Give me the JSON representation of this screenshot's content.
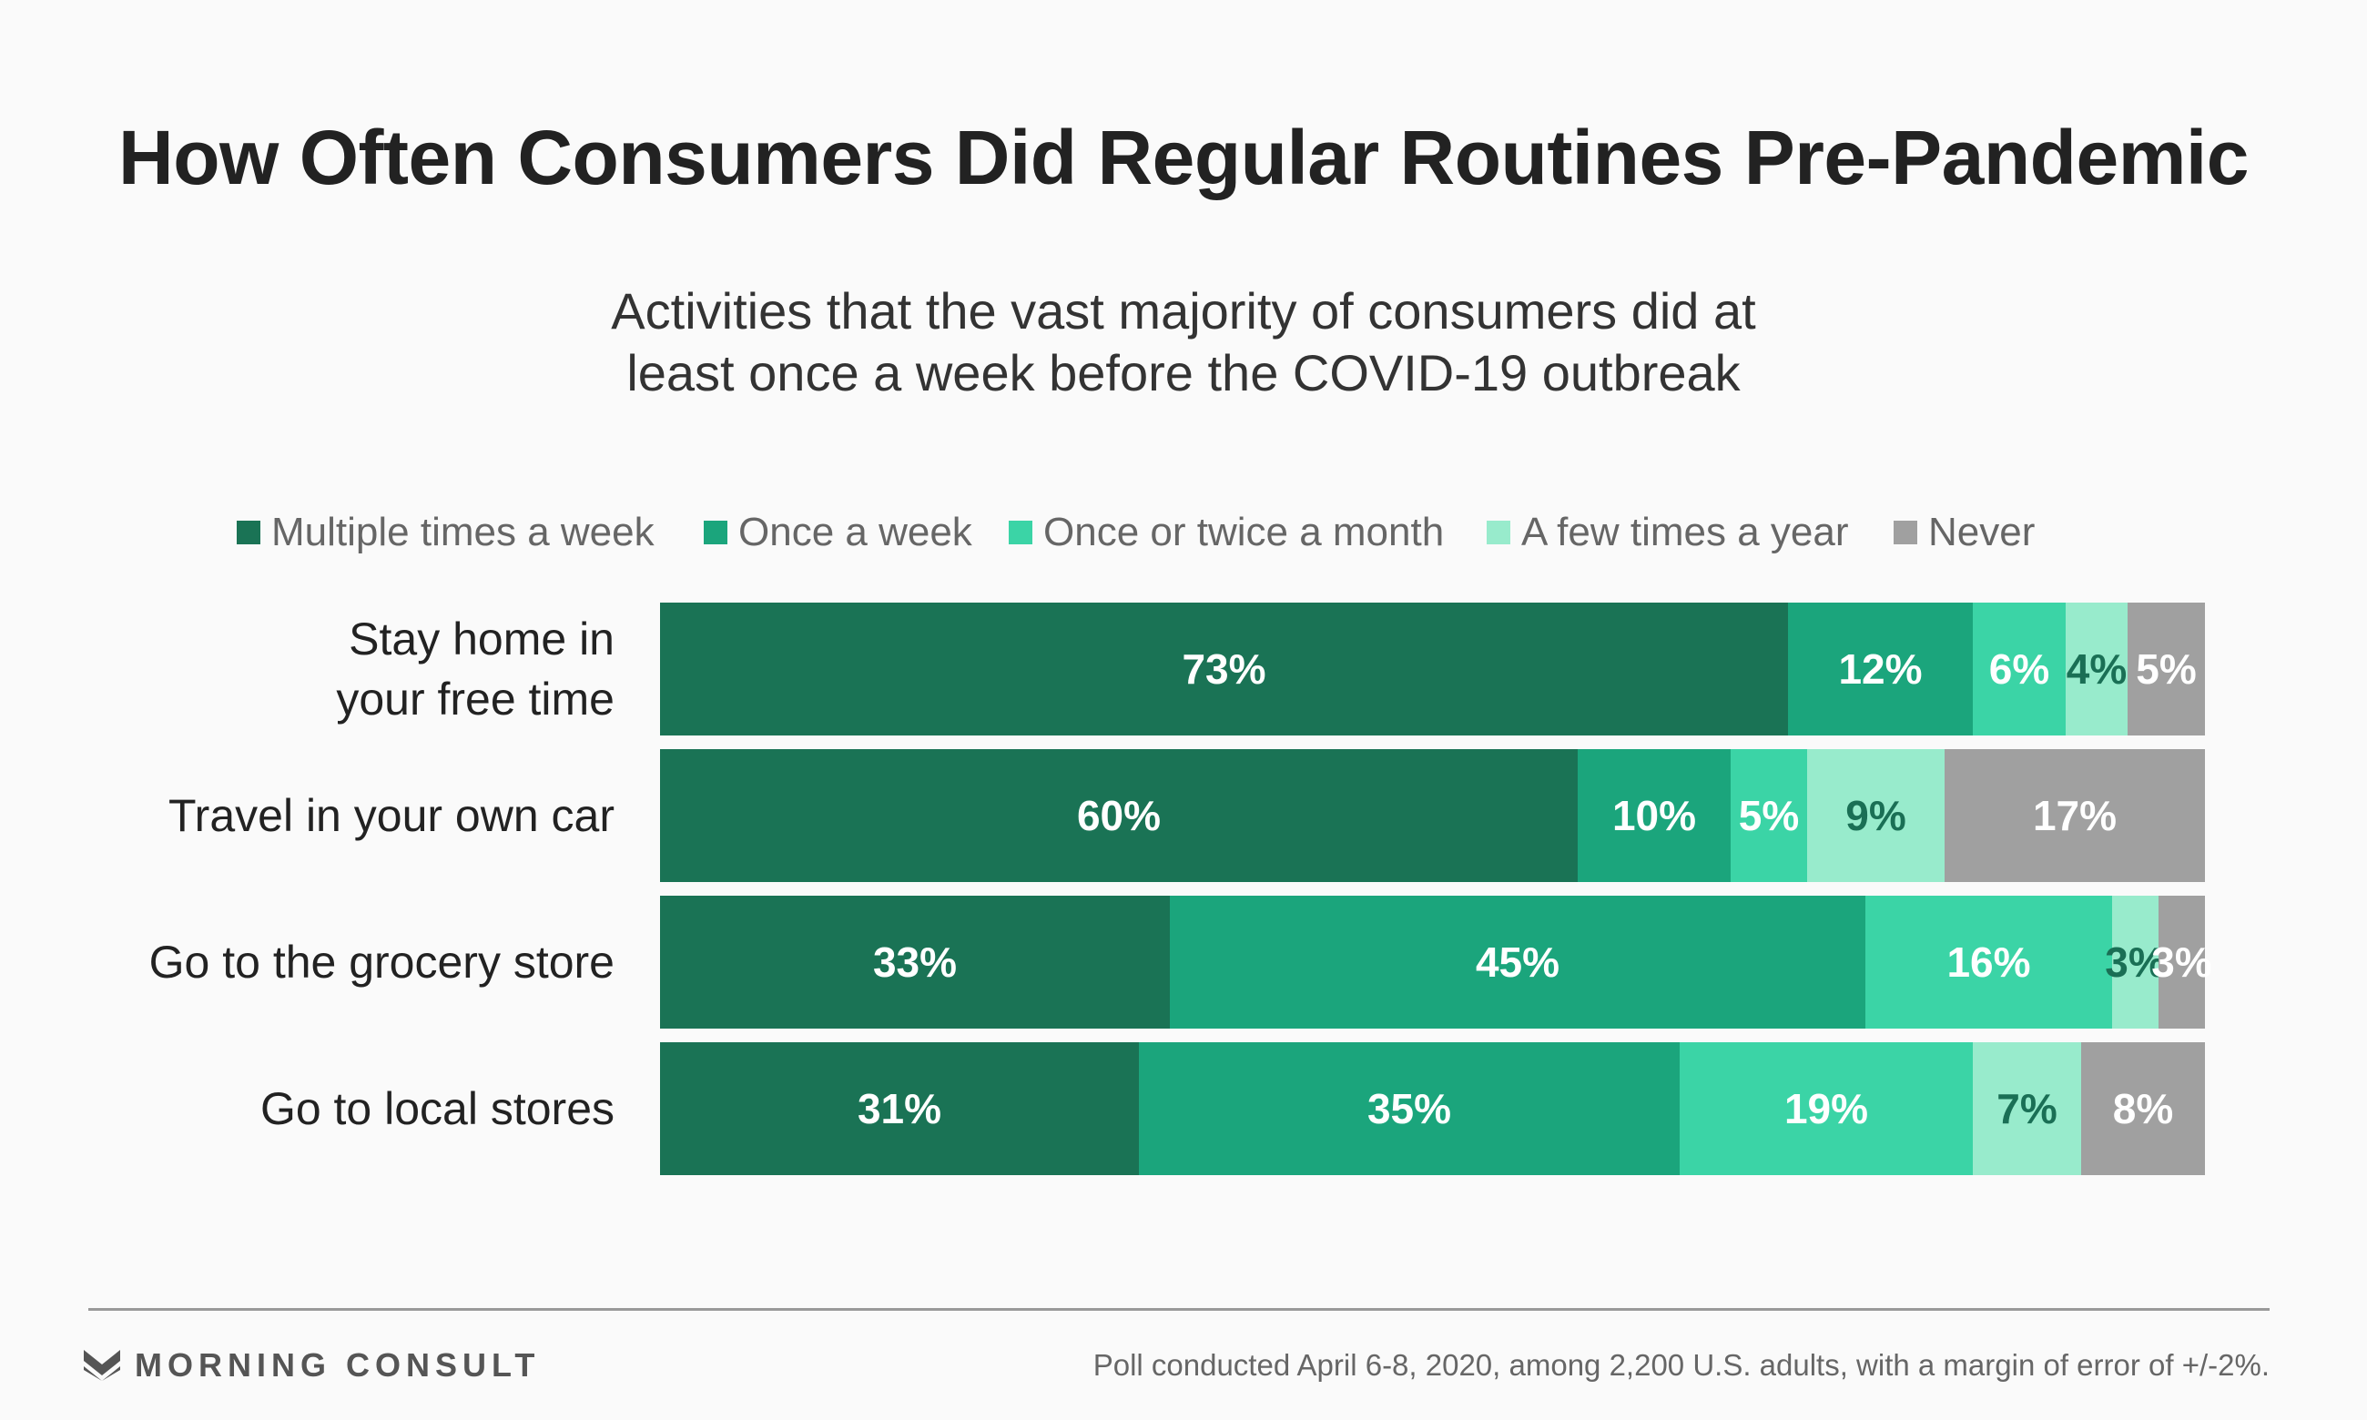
{
  "title": "How Often Consumers Did Regular Routines Pre-Pandemic",
  "subtitle_line1": "Activities that the vast majority of consumers did at",
  "subtitle_line2": "least once a week before the COVID-19 outbreak",
  "chart_data": {
    "type": "bar",
    "orientation": "horizontal",
    "stacked": true,
    "unit": "%",
    "categories": [
      "Stay home in your free time",
      "Travel in your own car",
      "Go to the grocery store",
      "Go to local stores"
    ],
    "category_lines": [
      [
        "Stay home in",
        "your free time"
      ],
      [
        "Travel in your own car"
      ],
      [
        "Go to the grocery store"
      ],
      [
        "Go to local stores"
      ]
    ],
    "series": [
      {
        "name": "Multiple times a week",
        "color": "#1a7355",
        "label_dark": false,
        "values": [
          73,
          60,
          33,
          31
        ]
      },
      {
        "name": "Once a week",
        "color": "#1ba57c",
        "label_dark": false,
        "values": [
          12,
          10,
          45,
          35
        ]
      },
      {
        "name": "Once or twice a month",
        "color": "#3bd4a6",
        "label_dark": false,
        "values": [
          6,
          5,
          16,
          19
        ]
      },
      {
        "name": "A few times a year",
        "color": "#98ebcc",
        "label_dark": true,
        "values": [
          4,
          9,
          3,
          7
        ]
      },
      {
        "name": "Never",
        "color": "#a0a0a0",
        "label_dark": false,
        "values": [
          5,
          17,
          3,
          8
        ]
      }
    ],
    "xlim": [
      0,
      100
    ],
    "legend_position": "top",
    "grid": false
  },
  "footer": {
    "brand": "MORNING CONSULT",
    "note": "Poll conducted April 6-8, 2020, among 2,200 U.S. adults, with a margin of error of +/-2%."
  }
}
